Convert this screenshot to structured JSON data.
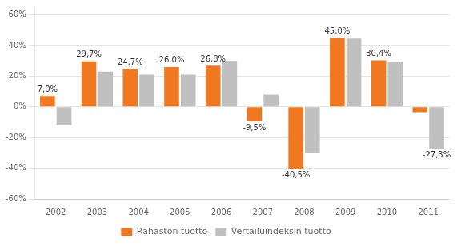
{
  "chart_data": {
    "type": "bar",
    "categories": [
      "2002",
      "2003",
      "2004",
      "2005",
      "2006",
      "2007",
      "2008",
      "2009",
      "2010",
      "2011"
    ],
    "series": [
      {
        "name": "Rahaston tuotto",
        "color": "#F07820",
        "values": [
          7.0,
          29.7,
          24.7,
          26.0,
          26.8,
          -9.5,
          -40.5,
          45.0,
          30.4,
          -3.5
        ],
        "value_labels": [
          "7,0%",
          "29,7%",
          "24,7%",
          "26,0%",
          "26,8%",
          "-9,5%",
          "-40,5%",
          "45,0%",
          "30,4%",
          null
        ]
      },
      {
        "name": "Vertailuindeksin tuotto",
        "color": "#C0C0C0",
        "values": [
          -12.0,
          23.0,
          21.0,
          21.0,
          30.0,
          8.0,
          -30.0,
          44.5,
          29.0,
          -27.3
        ],
        "value_labels": [
          null,
          null,
          null,
          null,
          null,
          null,
          null,
          null,
          null,
          "-27,3%"
        ]
      }
    ],
    "ylim": [
      -60,
      65
    ],
    "yticks": [
      {
        "value": -60,
        "label": "-60%"
      },
      {
        "value": -40,
        "label": "-40%"
      },
      {
        "value": -20,
        "label": "-20%"
      },
      {
        "value": 0,
        "label": "0%"
      },
      {
        "value": 20,
        "label": "20%"
      },
      {
        "value": 40,
        "label": "40%"
      },
      {
        "value": 60,
        "label": "60%"
      }
    ],
    "grid": true,
    "legend": "bottom",
    "data_labels": true
  }
}
